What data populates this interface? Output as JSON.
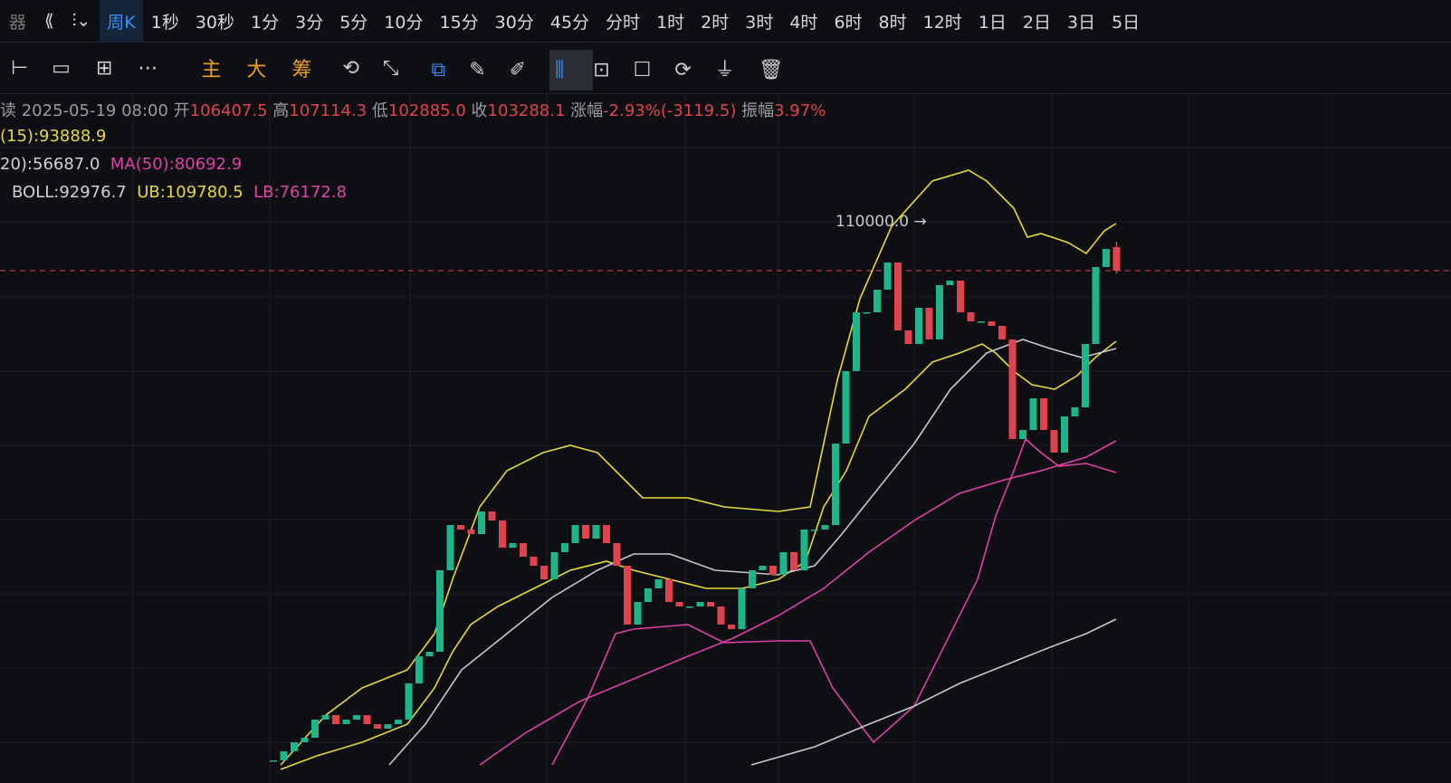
{
  "toolbar": {
    "period": "周K",
    "periods": [
      "1秒",
      "30秒",
      "1分",
      "3分",
      "5分",
      "10分",
      "15分",
      "30分",
      "45分",
      "分时",
      "1时",
      "2时",
      "3时",
      "4时",
      "6时",
      "8时",
      "12时",
      "1日",
      "2日",
      "3日",
      "5日"
    ],
    "tools": [
      "主",
      "大",
      "筹"
    ]
  },
  "info": {
    "date": "2025-05-19 08:00",
    "open_label": "开",
    "open": "106407.5",
    "high_label": "高",
    "high": "107114.3",
    "low_label": "低",
    "low": "102885.0",
    "close_label": "收",
    "close": "103288.1",
    "change_label": "涨幅",
    "change": "-2.93%(-3119.5)",
    "amp_label": "振幅",
    "amp": "3.97%"
  },
  "indicators": {
    "ma15": "(15):93888.9",
    "ma20": "20):56687.0",
    "ma50": "MA(50):80692.9",
    "boll": "BOLL:92976.7",
    "ub": "UB:109780.5",
    "lb": "LB:76172.8"
  },
  "high_marker": "110000.0 →",
  "closes": [
    38368,
    39568,
    40768,
    41368,
    43768,
    44368,
    43168,
    43768,
    44368,
    43168,
    42568,
    43168,
    43768,
    48568,
    52168,
    52768,
    63568,
    69568,
    68968,
    68368,
    71368,
    70168,
    66568,
    67168,
    65368,
    64168,
    62368,
    65968,
    67168,
    69568,
    67768,
    69568,
    67168,
    64168,
    56368,
    59368,
    61168,
    62368,
    59368,
    58768,
    58768,
    59368,
    58768,
    56368,
    55768,
    61168,
    63568,
    64168,
    62968,
    65968,
    63568,
    68968,
    68968,
    69568,
    80368,
    89968,
    97768,
    97768,
    100768,
    104368,
    95368,
    93568,
    98368,
    94168,
    101368,
    101968,
    97768,
    96568,
    96568,
    95968,
    94168,
    80968,
    82168,
    86368,
    82168,
    79168,
    83968,
    85168,
    93568,
    103768,
    106168
  ]
}
